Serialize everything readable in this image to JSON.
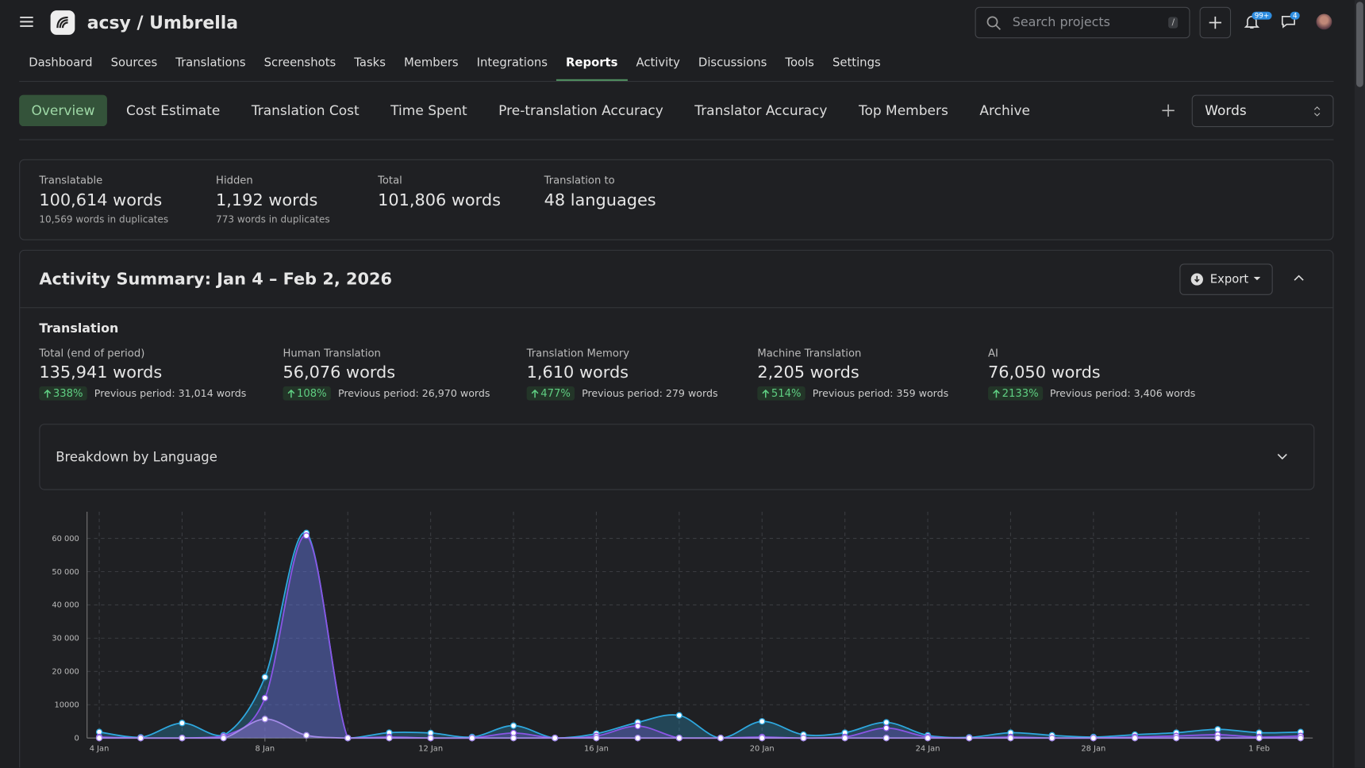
{
  "header": {
    "project": "acsy / Umbrella",
    "search_placeholder": "Search projects",
    "search_shortcut": "/",
    "notifications_badge": "99+",
    "messages_badge": "4"
  },
  "nav": {
    "items": [
      {
        "label": "Dashboard"
      },
      {
        "label": "Sources"
      },
      {
        "label": "Translations"
      },
      {
        "label": "Screenshots"
      },
      {
        "label": "Tasks"
      },
      {
        "label": "Members"
      },
      {
        "label": "Integrations"
      },
      {
        "label": "Reports",
        "active": true
      },
      {
        "label": "Activity"
      },
      {
        "label": "Discussions"
      },
      {
        "label": "Tools"
      },
      {
        "label": "Settings"
      }
    ]
  },
  "subtabs": {
    "items": [
      {
        "label": "Overview",
        "active": true
      },
      {
        "label": "Cost Estimate"
      },
      {
        "label": "Translation Cost"
      },
      {
        "label": "Time Spent"
      },
      {
        "label": "Pre-translation Accuracy"
      },
      {
        "label": "Translator Accuracy"
      },
      {
        "label": "Top Members"
      },
      {
        "label": "Archive"
      }
    ],
    "unit_select": "Words"
  },
  "summary": {
    "items": [
      {
        "label": "Translatable",
        "value": "100,614 words",
        "note": "10,569 words in duplicates"
      },
      {
        "label": "Hidden",
        "value": "1,192 words",
        "note": "773 words in duplicates"
      },
      {
        "label": "Total",
        "value": "101,806 words"
      },
      {
        "label": "Translation to",
        "value": "48 languages"
      }
    ]
  },
  "activity": {
    "title": "Activity Summary: Jan 4 – Feb 2, 2026",
    "export": "Export",
    "section": "Translation",
    "metrics": [
      {
        "label": "Total (end of period)",
        "value": "135,941 words",
        "change": "338%",
        "previous": "Previous period: 31,014 words"
      },
      {
        "label": "Human Translation",
        "value": "56,076 words",
        "change": "108%",
        "previous": "Previous period: 26,970 words"
      },
      {
        "label": "Translation Memory",
        "value": "1,610 words",
        "change": "477%",
        "previous": "Previous period: 279 words"
      },
      {
        "label": "Machine Translation",
        "value": "2,205 words",
        "change": "514%",
        "previous": "Previous period: 359 words"
      },
      {
        "label": "AI",
        "value": "76,050 words",
        "change": "2133%",
        "previous": "Previous period: 3,406 words"
      }
    ],
    "breakdown": "Breakdown by Language"
  },
  "chart_data": {
    "type": "line",
    "grid": true,
    "categories": [
      "4 Jan",
      null,
      null,
      null,
      "8 Jan",
      null,
      null,
      null,
      "12 Jan",
      null,
      null,
      null,
      "16 Jan",
      null,
      null,
      null,
      "20 Jan",
      null,
      null,
      null,
      "24 Jan",
      null,
      null,
      null,
      "28 Jan",
      null,
      null,
      null,
      "1 Feb",
      null
    ],
    "series": [
      {
        "color": "#2ea8df",
        "values": [
          1800,
          200,
          4500,
          800,
          18300,
          61600,
          0,
          1600,
          1500,
          300,
          3700,
          0,
          1300,
          4700,
          6800,
          0,
          5000,
          1000,
          1600,
          4700,
          800,
          200,
          1600,
          800,
          300,
          1000,
          1600,
          2600,
          1600,
          1800
        ]
      },
      {
        "color": "#8b55e6",
        "values": [
          300,
          0,
          0,
          500,
          12000,
          60800,
          0,
          300,
          0,
          0,
          1500,
          0,
          600,
          3600,
          0,
          0,
          300,
          0,
          300,
          3000,
          300,
          0,
          300,
          0,
          0,
          300,
          600,
          1000,
          300,
          600
        ]
      },
      {
        "color": "#a48be8",
        "values": [
          0,
          0,
          0,
          0,
          5700,
          800,
          0,
          0,
          0,
          0,
          0,
          0,
          0,
          0,
          0,
          0,
          0,
          0,
          0,
          0,
          0,
          0,
          0,
          0,
          0,
          0,
          0,
          0,
          0,
          0
        ]
      }
    ],
    "ylim": [
      0,
      68000
    ],
    "yticks": [
      0,
      10000,
      {
        "value": 20000,
        "label": "20 000"
      },
      {
        "value": 30000,
        "label": "30 000"
      },
      {
        "value": 40000,
        "label": "40 000"
      },
      {
        "value": 50000,
        "label": "50 000"
      },
      {
        "value": 60000,
        "label": "60 000"
      }
    ]
  }
}
